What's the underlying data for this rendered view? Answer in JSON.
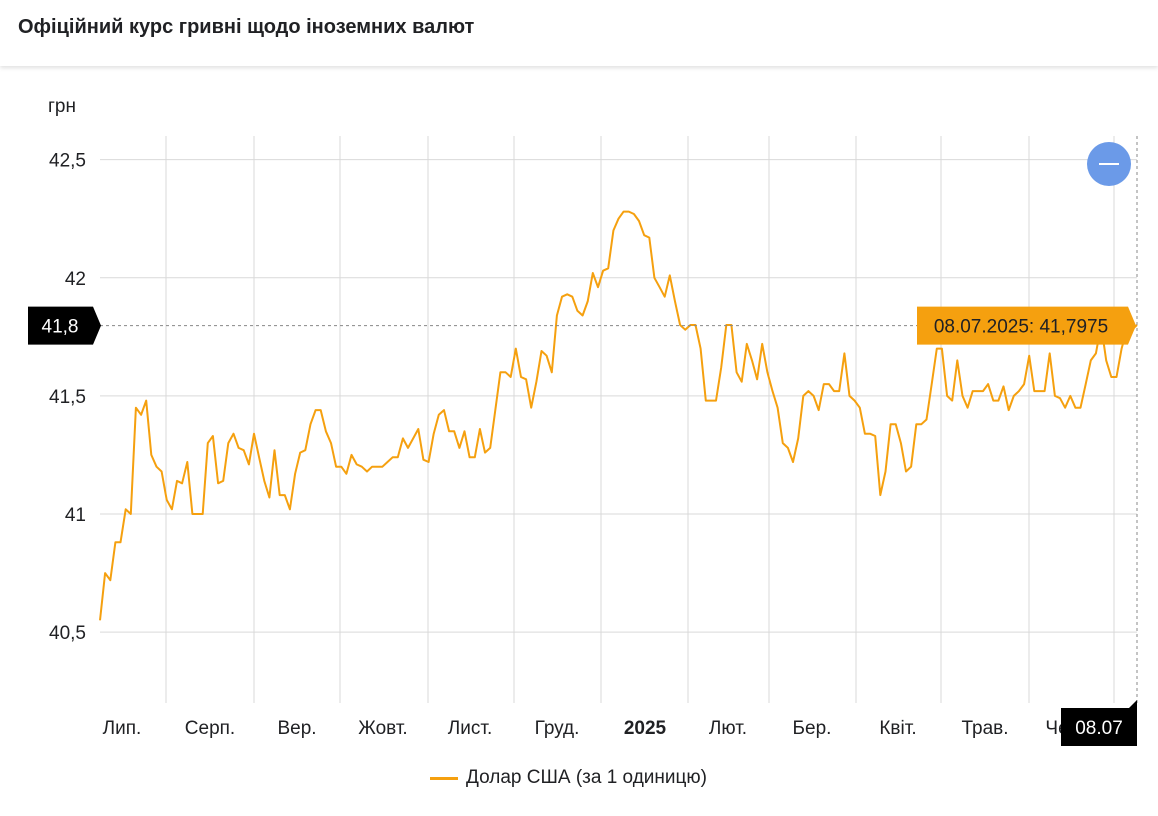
{
  "header": {
    "title": "Офіційний курс гривні щодо іноземних валют"
  },
  "chart_data": {
    "type": "line",
    "ylabel": "грн",
    "ylim": [
      40.2,
      42.6
    ],
    "y_ticks": [
      {
        "value": 40.5,
        "label": "40,5"
      },
      {
        "value": 41,
        "label": "41"
      },
      {
        "value": 41.5,
        "label": "41,5"
      },
      {
        "value": 42,
        "label": "42"
      },
      {
        "value": 42.5,
        "label": "42,5"
      }
    ],
    "x_ticks": [
      {
        "label": "Лип.",
        "bold": false
      },
      {
        "label": "Серп.",
        "bold": false
      },
      {
        "label": "Вер.",
        "bold": false
      },
      {
        "label": "Жовт.",
        "bold": false
      },
      {
        "label": "Лист.",
        "bold": false
      },
      {
        "label": "Груд.",
        "bold": false
      },
      {
        "label": "2025",
        "bold": true
      },
      {
        "label": "Лют.",
        "bold": false
      },
      {
        "label": "Бер.",
        "bold": false
      },
      {
        "label": "Квіт.",
        "bold": false
      },
      {
        "label": "Трав.",
        "bold": false
      },
      {
        "label": "Черв.",
        "bold": false
      }
    ],
    "series": [
      {
        "name": "Долар США (за 1 одиницю)",
        "color": "#f5a00f",
        "values": [
          40.55,
          40.75,
          40.72,
          40.88,
          40.88,
          41.02,
          41.0,
          41.45,
          41.42,
          41.48,
          41.25,
          41.2,
          41.18,
          41.06,
          41.02,
          41.14,
          41.13,
          41.22,
          41.0,
          41.0,
          41.0,
          41.3,
          41.33,
          41.13,
          41.14,
          41.3,
          41.34,
          41.28,
          41.27,
          41.21,
          41.34,
          41.24,
          41.14,
          41.07,
          41.27,
          41.08,
          41.08,
          41.02,
          41.17,
          41.26,
          41.27,
          41.38,
          41.44,
          41.44,
          41.35,
          41.3,
          41.2,
          41.2,
          41.17,
          41.25,
          41.21,
          41.2,
          41.18,
          41.2,
          41.2,
          41.2,
          41.22,
          41.24,
          41.24,
          41.32,
          41.28,
          41.32,
          41.36,
          41.23,
          41.22,
          41.34,
          41.42,
          41.44,
          41.35,
          41.35,
          41.28,
          41.35,
          41.24,
          41.24,
          41.36,
          41.26,
          41.28,
          41.44,
          41.6,
          41.6,
          41.58,
          41.7,
          41.58,
          41.57,
          41.45,
          41.56,
          41.69,
          41.67,
          41.6,
          41.84,
          41.92,
          41.93,
          41.92,
          41.86,
          41.84,
          41.9,
          42.02,
          41.96,
          42.03,
          42.04,
          42.2,
          42.25,
          42.28,
          42.28,
          42.27,
          42.24,
          42.18,
          42.17,
          42.0,
          41.96,
          41.92,
          42.01,
          41.9,
          41.8,
          41.78,
          41.8,
          41.8,
          41.7,
          41.48,
          41.48,
          41.48,
          41.62,
          41.8,
          41.8,
          41.6,
          41.56,
          41.72,
          41.65,
          41.57,
          41.72,
          41.6,
          41.52,
          41.45,
          41.3,
          41.28,
          41.22,
          41.32,
          41.5,
          41.52,
          41.5,
          41.44,
          41.55,
          41.55,
          41.52,
          41.52,
          41.68,
          41.5,
          41.48,
          41.45,
          41.34,
          41.34,
          41.33,
          41.08,
          41.18,
          41.38,
          41.38,
          41.3,
          41.18,
          41.2,
          41.38,
          41.38,
          41.4,
          41.55,
          41.7,
          41.7,
          41.5,
          41.48,
          41.65,
          41.5,
          41.45,
          41.52,
          41.52,
          41.52,
          41.55,
          41.48,
          41.48,
          41.54,
          41.44,
          41.5,
          41.52,
          41.55,
          41.67,
          41.52,
          41.52,
          41.52,
          41.68,
          41.5,
          41.49,
          41.45,
          41.5,
          41.45,
          41.45,
          41.55,
          41.65,
          41.68,
          41.8,
          41.65,
          41.58,
          41.58,
          41.7,
          41.78,
          41.78,
          41.8
        ]
      }
    ],
    "annotation": {
      "date": "08.07",
      "tooltip": "08.07.2025: 41,7975",
      "value": 41.7975,
      "y_label": "41,8"
    },
    "legend": "Долар США (за 1 одиницю)",
    "legend_position": "bottom-center",
    "grid": true
  }
}
